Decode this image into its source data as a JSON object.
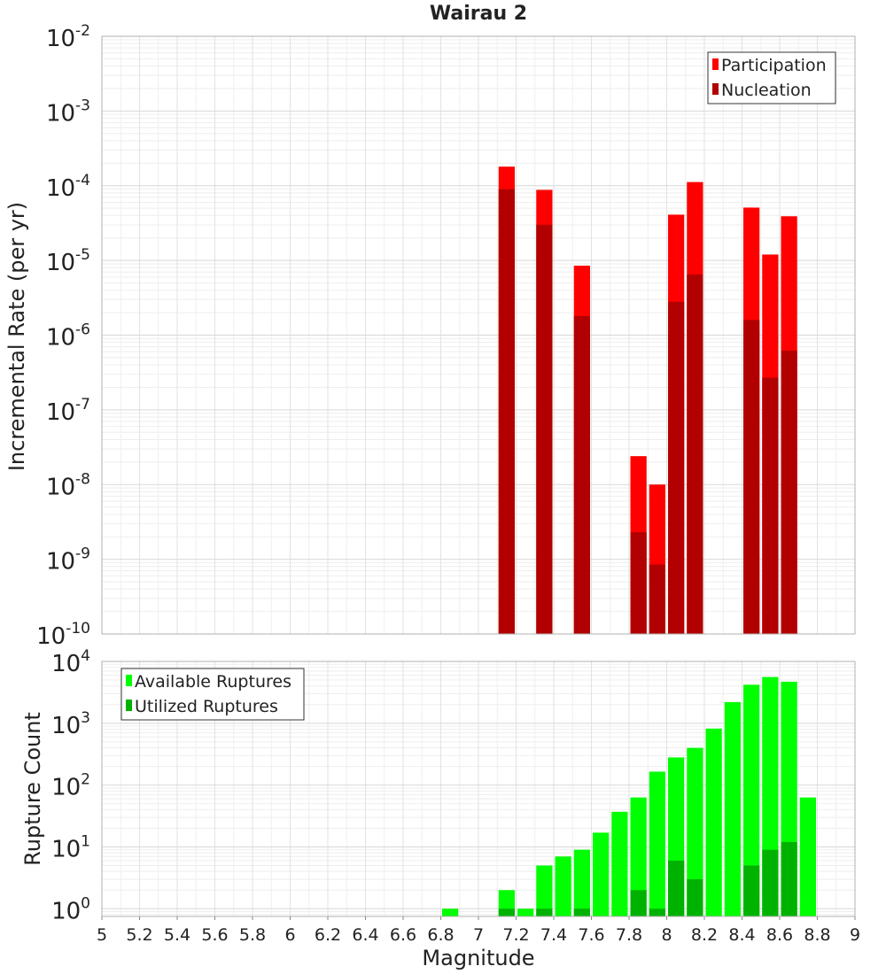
{
  "chart_data": [
    {
      "type": "bar",
      "title": "Wairau 2",
      "xlabel": "Magnitude",
      "ylabel": "Incremental Rate (per yr)",
      "yscale": "log",
      "ylim": [
        1e-10,
        0.01
      ],
      "xlim": [
        5,
        9
      ],
      "bar_width": 0.1,
      "y_tick_exponents": [
        "-10",
        "-9",
        "-8",
        "-7",
        "-6",
        "-5",
        "-4",
        "-3",
        "-2"
      ],
      "legend": {
        "placement": "top-right",
        "entries": [
          "Participation",
          "Nucleation"
        ]
      },
      "series": [
        {
          "name": "Participation",
          "color": "#ff0000",
          "x": [
            7.15,
            7.35,
            7.55,
            7.85,
            7.95,
            8.05,
            8.15,
            8.45,
            8.55,
            8.65
          ],
          "values": [
            0.00018,
            8.8e-05,
            8.5e-06,
            2.4e-08,
            1e-08,
            4.1e-05,
            0.000112,
            5.1e-05,
            1.2e-05,
            3.9e-05
          ]
        },
        {
          "name": "Nucleation",
          "color": "#b20000",
          "x": [
            7.15,
            7.35,
            7.55,
            7.85,
            7.95,
            8.05,
            8.15,
            8.45,
            8.55,
            8.65
          ],
          "values": [
            9e-05,
            3e-05,
            1.8e-06,
            2.3e-09,
            8.5e-10,
            2.8e-06,
            6.5e-06,
            1.6e-06,
            2.7e-07,
            6.2e-07
          ]
        }
      ]
    },
    {
      "type": "bar",
      "title": "",
      "xlabel": "Magnitude",
      "ylabel": "Rupture Count",
      "yscale": "log",
      "ylim": [
        0.75,
        10000.0
      ],
      "xlim": [
        5,
        9
      ],
      "bar_width": 0.1,
      "x_ticks": [
        "5",
        "5.2",
        "5.4",
        "5.6",
        "5.8",
        "6",
        "6.2",
        "6.4",
        "6.6",
        "6.8",
        "7",
        "7.2",
        "7.4",
        "7.6",
        "7.8",
        "8",
        "8.2",
        "8.4",
        "8.6",
        "8.8",
        "9"
      ],
      "y_tick_exponents": [
        "0",
        "1",
        "2",
        "3",
        "4"
      ],
      "legend": {
        "placement": "top-left",
        "entries": [
          "Available Ruptures",
          "Utilized Ruptures"
        ]
      },
      "series": [
        {
          "name": "Available Ruptures",
          "color": "#00ff00",
          "x": [
            6.85,
            7.15,
            7.25,
            7.35,
            7.45,
            7.55,
            7.65,
            7.75,
            7.85,
            7.95,
            8.05,
            8.15,
            8.25,
            8.35,
            8.45,
            8.55,
            8.65,
            8.75
          ],
          "values": [
            1,
            2,
            1,
            5,
            7,
            9,
            17,
            37,
            63,
            165,
            280,
            400,
            820,
            2200,
            4200,
            5600,
            4700,
            63
          ]
        },
        {
          "name": "Utilized Ruptures",
          "color": "#00b200",
          "x": [
            7.15,
            7.35,
            7.55,
            7.85,
            7.95,
            8.05,
            8.15,
            8.45,
            8.55,
            8.65
          ],
          "values": [
            1,
            1,
            1,
            2,
            1,
            6,
            3,
            5,
            9,
            12
          ]
        }
      ]
    }
  ]
}
